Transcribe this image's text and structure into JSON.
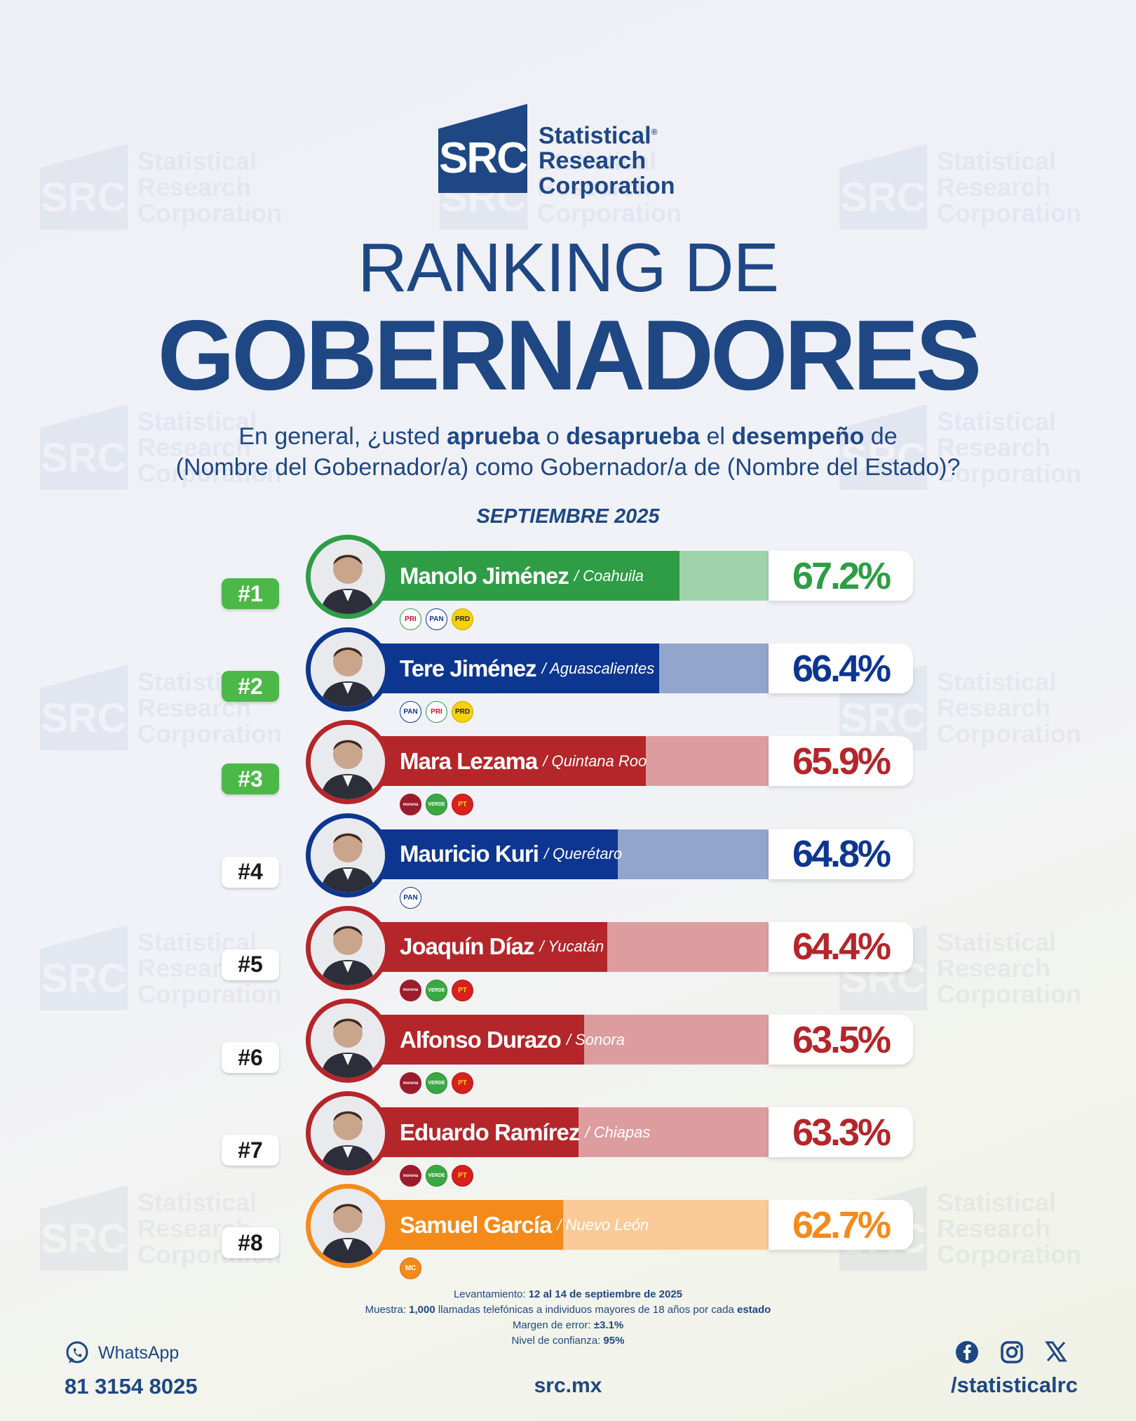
{
  "brand": {
    "initials": "SRC",
    "line1": "Statistical",
    "line2": "Research",
    "line3": "Corporation",
    "registered": "®"
  },
  "title_line1": "RANKING DE",
  "title_line2": "GOBERNADORES",
  "question": {
    "p1": "En general, ¿usted ",
    "b1": "aprueba",
    "p2": " o ",
    "b2": "desaprueba",
    "p3": " el ",
    "b3": "desempeño",
    "p4": " de",
    "line2": "(Nombre del Gobernador/a) como Gobernador/a de (Nombre del Estado)?"
  },
  "date": "SEPTIEMBRE 2025",
  "colors": {
    "navy": "#1e4784",
    "green": "#2e9d45",
    "blue": "#0d3690",
    "red": "#b4262a",
    "orange": "#f48a1a"
  },
  "chart_data": {
    "type": "bar",
    "orientation": "horizontal",
    "unit": "%",
    "categories": [
      "Manolo Jiménez",
      "Tere Jiménez",
      "Mara Lezama",
      "Mauricio Kuri",
      "Joaquín Díaz",
      "Alfonso Durazo",
      "Eduardo Ramírez",
      "Samuel García"
    ],
    "values": [
      67.2,
      66.4,
      65.9,
      64.8,
      64.4,
      63.5,
      63.3,
      62.7
    ],
    "rows": [
      {
        "rank": "#1",
        "name": "Manolo Jiménez",
        "state": "/ Coahuila",
        "value": 67.2,
        "pct_label": "67.2%",
        "color": "#2e9d45",
        "rank_highlight": true,
        "parties": [
          "PRI",
          "PAN",
          "PRD"
        ]
      },
      {
        "rank": "#2",
        "name": "Tere Jiménez",
        "state": "/ Aguascalientes",
        "value": 66.4,
        "pct_label": "66.4%",
        "color": "#0d3690",
        "rank_highlight": true,
        "parties": [
          "PAN",
          "PRI",
          "PRD"
        ]
      },
      {
        "rank": "#3",
        "name": "Mara Lezama",
        "state": "/ Quintana Roo",
        "value": 65.9,
        "pct_label": "65.9%",
        "color": "#b4262a",
        "rank_highlight": true,
        "parties": [
          "morena",
          "VERDE",
          "PT"
        ]
      },
      {
        "rank": "#4",
        "name": "Mauricio Kuri",
        "state": "/ Querétaro",
        "value": 64.8,
        "pct_label": "64.8%",
        "color": "#0d3690",
        "rank_highlight": false,
        "parties": [
          "PAN"
        ]
      },
      {
        "rank": "#5",
        "name": "Joaquín Díaz",
        "state": "/ Yucatán",
        "value": 64.4,
        "pct_label": "64.4%",
        "color": "#b4262a",
        "rank_highlight": false,
        "parties": [
          "morena",
          "VERDE",
          "PT"
        ]
      },
      {
        "rank": "#6",
        "name": "Alfonso Durazo",
        "state": "/ Sonora",
        "value": 63.5,
        "pct_label": "63.5%",
        "color": "#b4262a",
        "rank_highlight": false,
        "parties": [
          "morena",
          "VERDE",
          "PT"
        ]
      },
      {
        "rank": "#7",
        "name": "Eduardo Ramírez",
        "state": "/ Chiapas",
        "value": 63.3,
        "pct_label": "63.3%",
        "color": "#b4262a",
        "rank_highlight": false,
        "parties": [
          "morena",
          "VERDE",
          "PT"
        ]
      },
      {
        "rank": "#8",
        "name": "Samuel García",
        "state": "/ Nuevo León",
        "value": 62.7,
        "pct_label": "62.7%",
        "color": "#f48a1a",
        "rank_highlight": false,
        "parties": [
          "MC"
        ]
      }
    ]
  },
  "methodology": {
    "l1_label": "Levantamiento:",
    "l1_value": " 12 al 14 de septiembre de 2025",
    "l2_label": "Muestra:",
    "l2_b1": " 1,000",
    "l2_mid": " llamadas telefónicas a individuos mayores de 18 años por cada ",
    "l2_b2": "estado",
    "l3_label": "Margen de error:",
    "l3_value": " ±3.1%",
    "l4_label": "Nivel de confianza:",
    "l4_value": " 95%"
  },
  "footer": {
    "whatsapp_label": "WhatsApp",
    "whatsapp_number": "81 3154 8025",
    "website": "src.mx",
    "social_handle": "/statisticalrc",
    "icons": [
      "whatsapp-icon",
      "facebook-icon",
      "instagram-icon",
      "x-icon"
    ]
  }
}
